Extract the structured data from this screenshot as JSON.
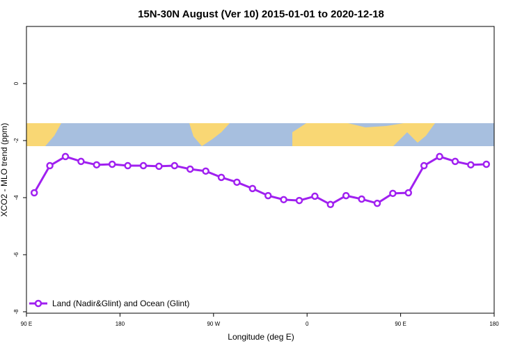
{
  "chart_data": {
    "type": "line",
    "title": "15N-30N August (Ver 10)   2015-01-01 to 2020-12-18",
    "x_label": "Longitude (deg E)",
    "y_label": "XCO2 - MLO trend (ppm)",
    "x": [
      97.5,
      112.5,
      127.5,
      142.5,
      157.5,
      172.5,
      187.5,
      202.5,
      217.5,
      232.5,
      247.5,
      262.5,
      277.5,
      292.5,
      307.5,
      322.5,
      337.5,
      352.5,
      367.5,
      382.5,
      397.5,
      412.5,
      427.5,
      442.5,
      457.5,
      472.5,
      487.5,
      502.5,
      517.5,
      532.5
    ],
    "series": [
      {
        "name": "Land (Nadir&Glint) and Ocean (Glint)",
        "color": "#a020f0",
        "values": [
          -3.83,
          -2.88,
          -2.56,
          -2.73,
          -2.85,
          -2.83,
          -2.88,
          -2.88,
          -2.9,
          -2.88,
          -3.0,
          -3.07,
          -3.29,
          -3.46,
          -3.68,
          -3.93,
          -4.07,
          -4.1,
          -3.95,
          -4.24,
          -3.93,
          -4.05,
          -4.2,
          -3.85,
          -3.83,
          -2.88,
          -2.56,
          -2.73,
          -2.85,
          -2.83
        ]
      }
    ],
    "xlim": [
      90,
      540
    ],
    "xticks": [
      {
        "value": 90,
        "label": "90 E"
      },
      180,
      {
        "value": 270,
        "label": "90 W"
      },
      {
        "value": 360,
        "label": "0"
      },
      {
        "value": 450,
        "label": "90 E"
      },
      {
        "value": 540,
        "label": "180"
      }
    ],
    "ylim": [
      -8.05,
      2
    ],
    "yticks": [
      -8,
      -6,
      -4,
      -2,
      0
    ],
    "legend": "bottom-left"
  }
}
